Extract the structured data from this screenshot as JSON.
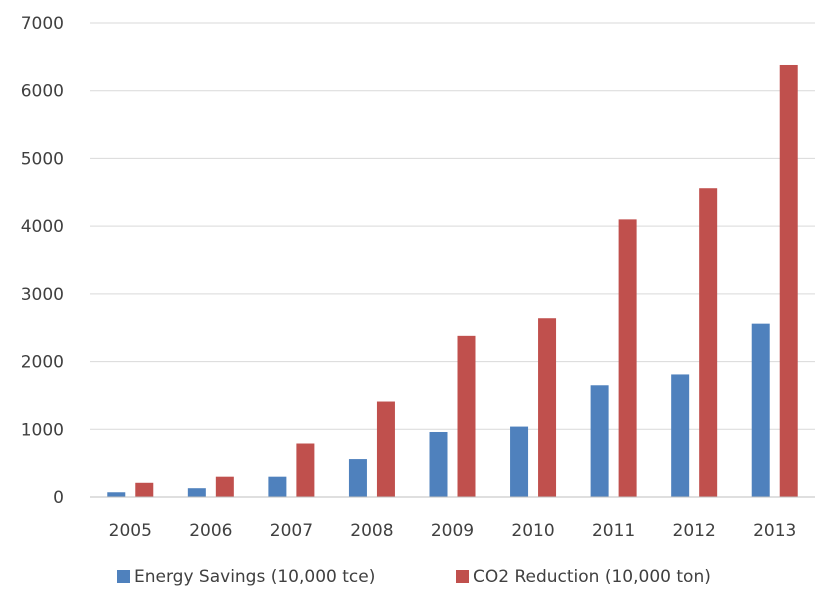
{
  "chart_data": {
    "type": "bar",
    "title": "",
    "xlabel": "",
    "ylabel": "",
    "categories": [
      "2005",
      "2006",
      "2007",
      "2008",
      "2009",
      "2010",
      "2011",
      "2012",
      "2013"
    ],
    "ylim": [
      0,
      7000
    ],
    "yticks": [
      "0",
      "1000",
      "2000",
      "3000",
      "4000",
      "5000",
      "6000",
      "7000"
    ],
    "grid": true,
    "legend_position": "bottom",
    "series": [
      {
        "name": "Energy Savings (10,000 tce)",
        "color": "#4f81bd",
        "values": [
          70,
          130,
          300,
          560,
          960,
          1040,
          1650,
          1810,
          2560
        ]
      },
      {
        "name": "CO2 Reduction (10,000 ton)",
        "color": "#c0504d",
        "values": [
          210,
          300,
          790,
          1410,
          2380,
          2640,
          4100,
          4560,
          6380
        ]
      }
    ]
  }
}
